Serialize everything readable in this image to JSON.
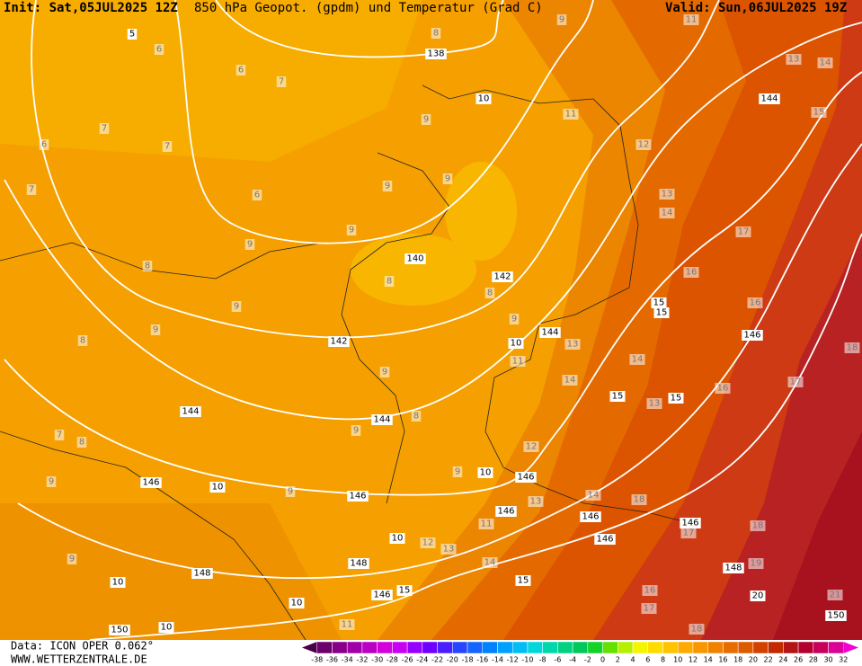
{
  "header": {
    "init": "Init: Sat,05JUL2025 12Z",
    "title": "850 hPa Geopot. (gpdm) und Temperatur (Grad C)",
    "valid": "Valid: Sun,06JUL2025 19Z"
  },
  "map": {
    "labels_black": [
      138,
      140,
      142,
      142,
      144,
      144,
      144,
      144,
      146,
      146,
      146,
      146,
      146,
      146,
      146,
      146,
      146,
      148,
      148,
      148,
      150,
      150,
      10,
      10,
      10,
      10,
      10,
      10,
      10,
      10,
      15,
      15,
      15,
      15,
      15,
      15,
      20,
      5
    ],
    "labels_gray": [
      6,
      6,
      7,
      7,
      7,
      6,
      7,
      6,
      9,
      9,
      9,
      9,
      9,
      11,
      12,
      13,
      14,
      15,
      13,
      14,
      17,
      16,
      16,
      18,
      16,
      17,
      14,
      13,
      14,
      11,
      12,
      13,
      9,
      8,
      8,
      9,
      9,
      8,
      8,
      9,
      8,
      9,
      7,
      8,
      9,
      9,
      9,
      9,
      12,
      13,
      14,
      11,
      13,
      14,
      18,
      16,
      17,
      18,
      18,
      19,
      21,
      17,
      11,
      11,
      9,
      8
    ]
  },
  "color_scale": {
    "ticks": [
      -38,
      -36,
      -34,
      -32,
      -30,
      -28,
      -26,
      -24,
      -22,
      -20,
      -18,
      -16,
      -14,
      -12,
      -10,
      -8,
      -6,
      -4,
      -2,
      0,
      2,
      4,
      6,
      8,
      10,
      12,
      14,
      16,
      18,
      20,
      22,
      24,
      26,
      28,
      30,
      32
    ],
    "colors": [
      "#4b004b",
      "#6c006c",
      "#880088",
      "#a000a8",
      "#bb00c4",
      "#d400dc",
      "#c800f5",
      "#9600ff",
      "#6e00ff",
      "#4b1eff",
      "#2846ff",
      "#1464ff",
      "#0082ff",
      "#00a0ff",
      "#00bef5",
      "#00d7dc",
      "#00d7aa",
      "#00d282",
      "#00c85a",
      "#14d228",
      "#64e100",
      "#b4f000",
      "#f5f500",
      "#ffdc00",
      "#ffc300",
      "#ffaa00",
      "#fa9600",
      "#f08200",
      "#e66e00",
      "#dc5a00",
      "#d24100",
      "#c32800",
      "#b41414",
      "#b4002d",
      "#c8005a",
      "#dc0096",
      "#f000d2"
    ]
  },
  "footer": {
    "data_source": "Data: ICON OPER 0.062°",
    "website": "WWW.WETTERZENTRALE.DE"
  }
}
